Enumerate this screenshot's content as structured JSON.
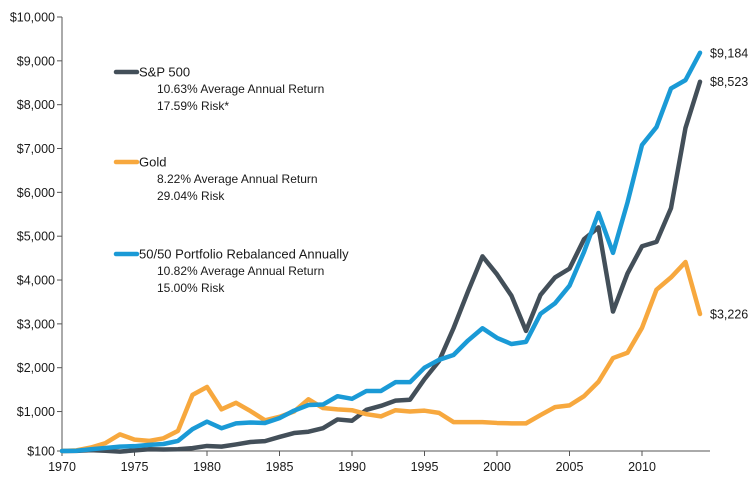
{
  "chart_data": {
    "type": "line",
    "title": "",
    "xlabel": "",
    "ylabel": "",
    "xlim": [
      1970,
      2014
    ],
    "ylim": [
      100,
      10000
    ],
    "x_ticks": [
      1970,
      1975,
      1980,
      1985,
      1990,
      1995,
      2000,
      2005,
      2010
    ],
    "y_ticks": [
      100,
      1000,
      2000,
      3000,
      4000,
      5000,
      6000,
      7000,
      8000,
      9000,
      10000
    ],
    "y_tick_labels": [
      "$100",
      "$1,000",
      "$2,000",
      "$3,000",
      "$4,000",
      "$5,000",
      "$6,000",
      "$7,000",
      "$8,000",
      "$9,000",
      "$10,000"
    ],
    "x": [
      1970,
      1971,
      1972,
      1973,
      1974,
      1975,
      1976,
      1977,
      1978,
      1979,
      1980,
      1981,
      1982,
      1983,
      1984,
      1985,
      1986,
      1987,
      1988,
      1989,
      1990,
      1991,
      1992,
      1993,
      1994,
      1995,
      1996,
      1997,
      1998,
      1999,
      2000,
      2001,
      2002,
      2003,
      2004,
      2005,
      2006,
      2007,
      2008,
      2009,
      2010,
      2011,
      2012,
      2013,
      2014
    ],
    "series": [
      {
        "name": "S&P 500",
        "color": "#434f59",
        "stats": [
          "10.63% Average Annual Return",
          "17.59% Risk*"
        ],
        "end_label": "$8,523",
        "values": [
          100,
          104,
          120,
          105,
          85,
          115,
          140,
          135,
          140,
          165,
          215,
          200,
          250,
          305,
          325,
          420,
          510,
          540,
          620,
          820,
          790,
          1040,
          1130,
          1250,
          1270,
          1740,
          2150,
          2900,
          3740,
          4540,
          4130,
          3640,
          2840,
          3660,
          4060,
          4260,
          4930,
          5200,
          3280,
          4150,
          4770,
          4870,
          5640,
          7470,
          8523
        ]
      },
      {
        "name": "Gold",
        "color": "#f7a83e",
        "stats": [
          "8.22% Average Annual Return",
          "29.04% Risk"
        ],
        "end_label": "$3,226",
        "values": [
          100,
          115,
          180,
          280,
          480,
          360,
          330,
          390,
          560,
          1380,
          1560,
          1050,
          1200,
          1010,
          800,
          880,
          1000,
          1280,
          1080,
          1050,
          1030,
          940,
          890,
          1030,
          1000,
          1020,
          970,
          760,
          760,
          760,
          740,
          730,
          730,
          920,
          1100,
          1140,
          1350,
          1680,
          2220,
          2340,
          2910,
          3780,
          4060,
          4410,
          3226
        ]
      },
      {
        "name": "50/50 Portfolio Rebalanced Annually",
        "color": "#1a9ad6",
        "stats": [
          "10.82% Average Annual Return",
          "15.00% Risk"
        ],
        "end_label": "$9,184",
        "values": [
          100,
          105,
          140,
          170,
          200,
          210,
          240,
          260,
          330,
          600,
          770,
          620,
          730,
          750,
          740,
          850,
          1020,
          1150,
          1160,
          1350,
          1290,
          1470,
          1470,
          1670,
          1670,
          2000,
          2180,
          2290,
          2620,
          2900,
          2680,
          2540,
          2590,
          3230,
          3470,
          3870,
          4640,
          5530,
          4620,
          5770,
          7080,
          7490,
          8370,
          8560,
          9184
        ]
      }
    ]
  }
}
